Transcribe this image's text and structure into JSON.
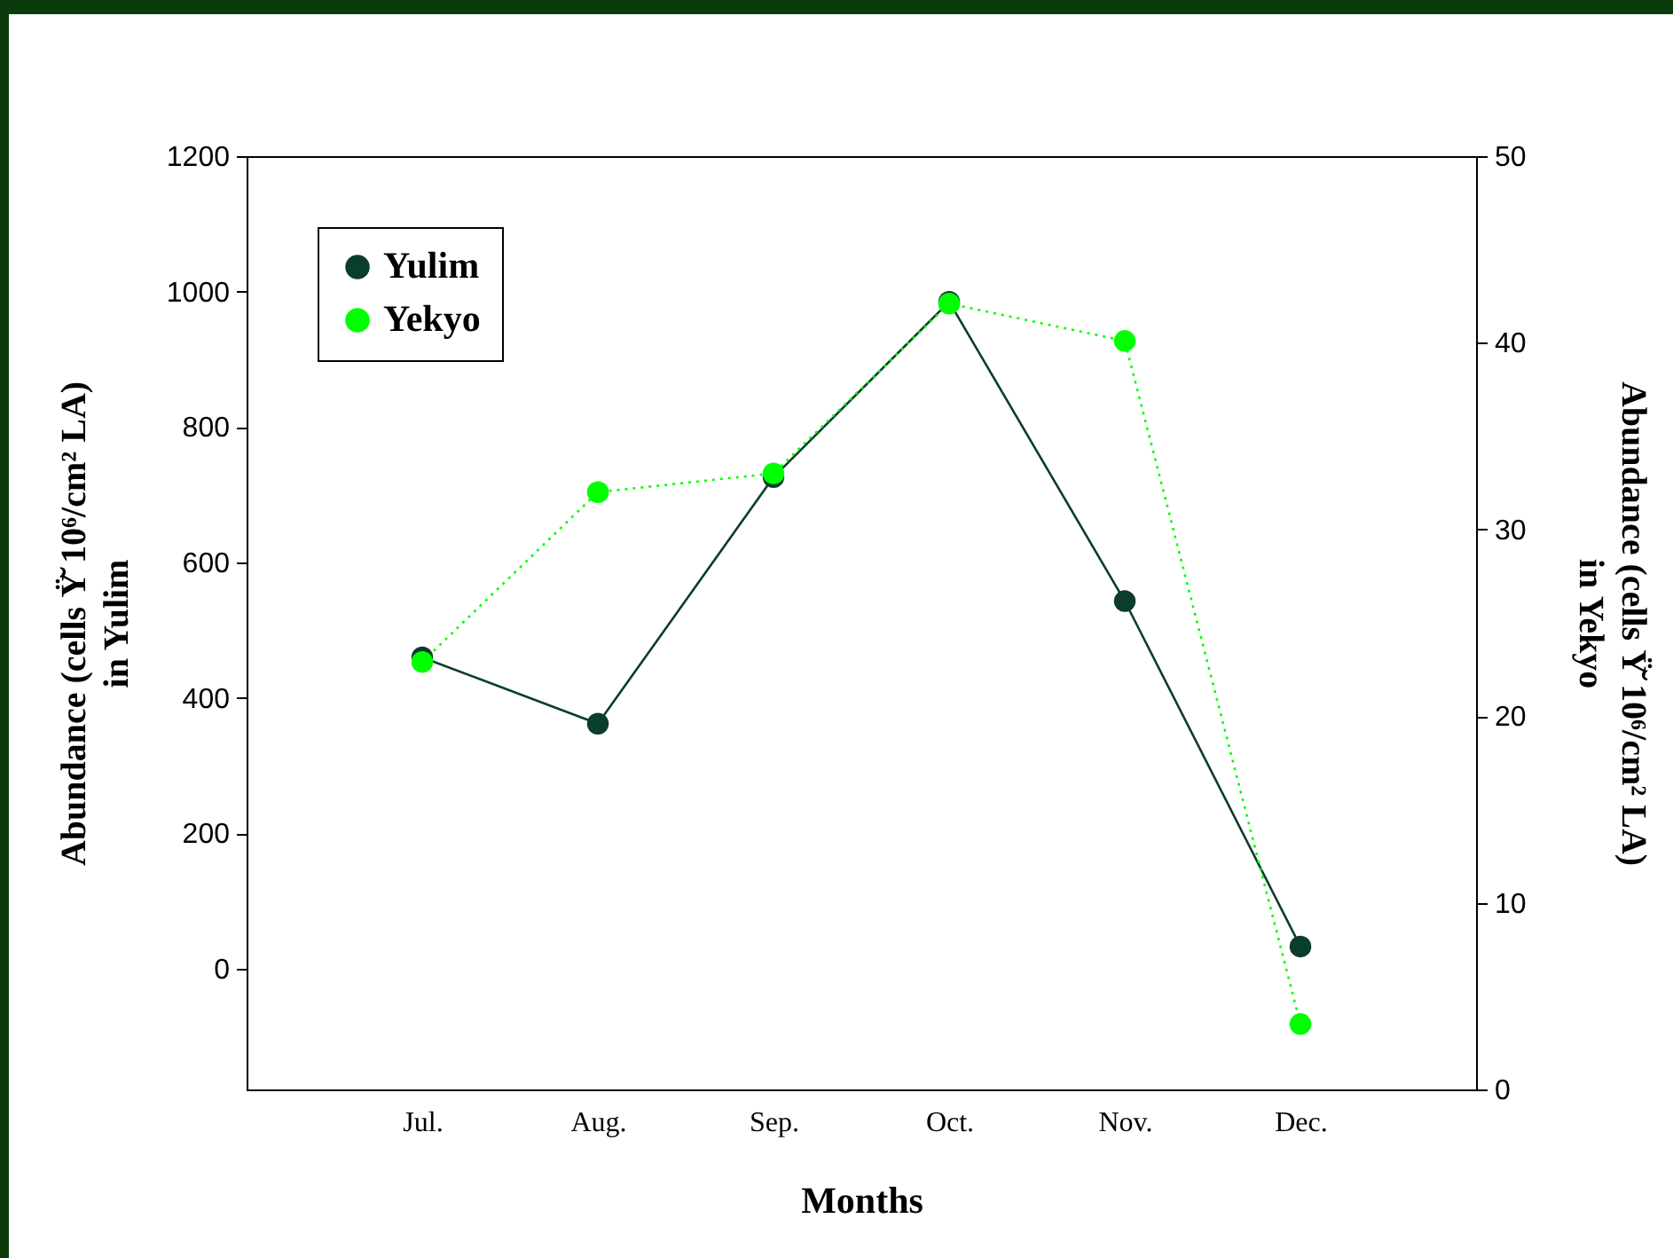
{
  "chart_data": {
    "type": "line",
    "xlabel": "Months",
    "ylabel": "Abundance (cells Ÿ̆ 10⁶/cm² LA)\nin Yulim",
    "y2label": "Abundance (cells Ÿ̆ 10⁶/cm² LA)\nin Yekyo",
    "categories": [
      "Jul.",
      "Aug.",
      "Sep.",
      "Oct.",
      "Nov.",
      "Dec."
    ],
    "series": [
      {
        "name": "Yulim",
        "color": "#0b3d2b",
        "line_style": "solid",
        "values": [
          460,
          362,
          726,
          985,
          543,
          33
        ]
      },
      {
        "name": "Yekyo",
        "color": "#00ff00",
        "line_style": "dotted",
        "axis": "y2",
        "values": [
          22.9,
          32.0,
          33.0,
          42.1,
          40.1,
          3.5
        ]
      }
    ],
    "ylim": [
      -178,
      1200
    ],
    "yticks": [
      0,
      200,
      400,
      600,
      800,
      1000,
      1200
    ],
    "y2lim": [
      0,
      50
    ],
    "y2ticks": [
      0,
      10,
      20,
      30,
      40,
      50
    ],
    "marker": "circle",
    "grid": false,
    "legend": "top left"
  }
}
